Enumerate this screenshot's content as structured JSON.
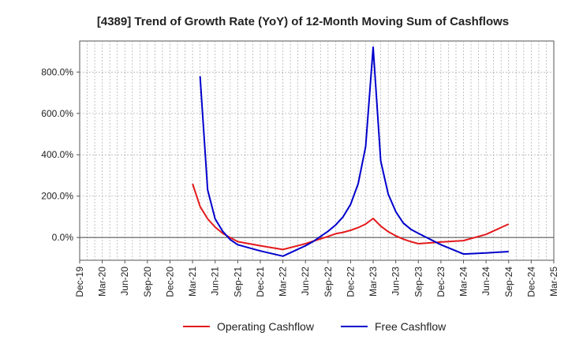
{
  "chart_data": {
    "type": "line",
    "title": "[4389]  Trend of Growth Rate (YoY) of 12-Month Moving Sum of Cashflows",
    "xlabel": "",
    "ylabel": "",
    "ylim": [
      -110,
      950
    ],
    "y_ticks": [
      0,
      200,
      400,
      600,
      800
    ],
    "y_tick_labels": [
      "0.0%",
      "200.0%",
      "400.0%",
      "600.0%",
      "800.0%"
    ],
    "x_tick_labels": [
      "Dec-19",
      "Mar-20",
      "Jun-20",
      "Sep-20",
      "Dec-20",
      "Mar-21",
      "Jun-21",
      "Sep-21",
      "Dec-21",
      "Mar-22",
      "Jun-22",
      "Sep-22",
      "Dec-22",
      "Mar-23",
      "Jun-23",
      "Sep-23",
      "Dec-23",
      "Mar-24",
      "Jun-24",
      "Sep-24",
      "Dec-24",
      "Mar-25"
    ],
    "grid": true,
    "legend_position": "bottom",
    "series": [
      {
        "name": "Operating Cashflow",
        "color": "#e31a1c",
        "x": [
          "Mar-21",
          "Apr-21",
          "May-21",
          "Jun-21",
          "Jul-21",
          "Aug-21",
          "Sep-21",
          "Dec-21",
          "Mar-22",
          "Jun-22",
          "Sep-22",
          "Oct-22",
          "Nov-22",
          "Dec-22",
          "Jan-23",
          "Feb-23",
          "Mar-23",
          "Apr-23",
          "May-23",
          "Jun-23",
          "Jul-23",
          "Aug-23",
          "Sep-23",
          "Dec-23",
          "Mar-24",
          "Jun-24",
          "Sep-24"
        ],
        "values": [
          260,
          150,
          90,
          50,
          20,
          0,
          -20,
          -40,
          -58,
          -30,
          5,
          18,
          25,
          35,
          48,
          65,
          92,
          55,
          28,
          8,
          -8,
          -20,
          -30,
          -22,
          -15,
          15,
          65
        ]
      },
      {
        "name": "Free Cashflow",
        "color": "#0000cc",
        "x": [
          "Apr-21",
          "May-21",
          "Jun-21",
          "Jul-21",
          "Aug-21",
          "Sep-21",
          "Dec-21",
          "Mar-22",
          "Jun-22",
          "Jul-22",
          "Aug-22",
          "Sep-22",
          "Oct-22",
          "Nov-22",
          "Dec-22",
          "Jan-23",
          "Feb-23",
          "Mar-23",
          "Apr-23",
          "May-23",
          "Jun-23",
          "Jul-23",
          "Aug-23",
          "Sep-23",
          "Dec-23",
          "Mar-24",
          "Jun-24",
          "Sep-24"
        ],
        "values": [
          780,
          230,
          90,
          30,
          -10,
          -35,
          -65,
          -90,
          -40,
          -20,
          5,
          30,
          60,
          100,
          160,
          260,
          440,
          920,
          370,
          210,
          125,
          70,
          40,
          20,
          -35,
          -80,
          -75,
          -68
        ]
      }
    ]
  }
}
